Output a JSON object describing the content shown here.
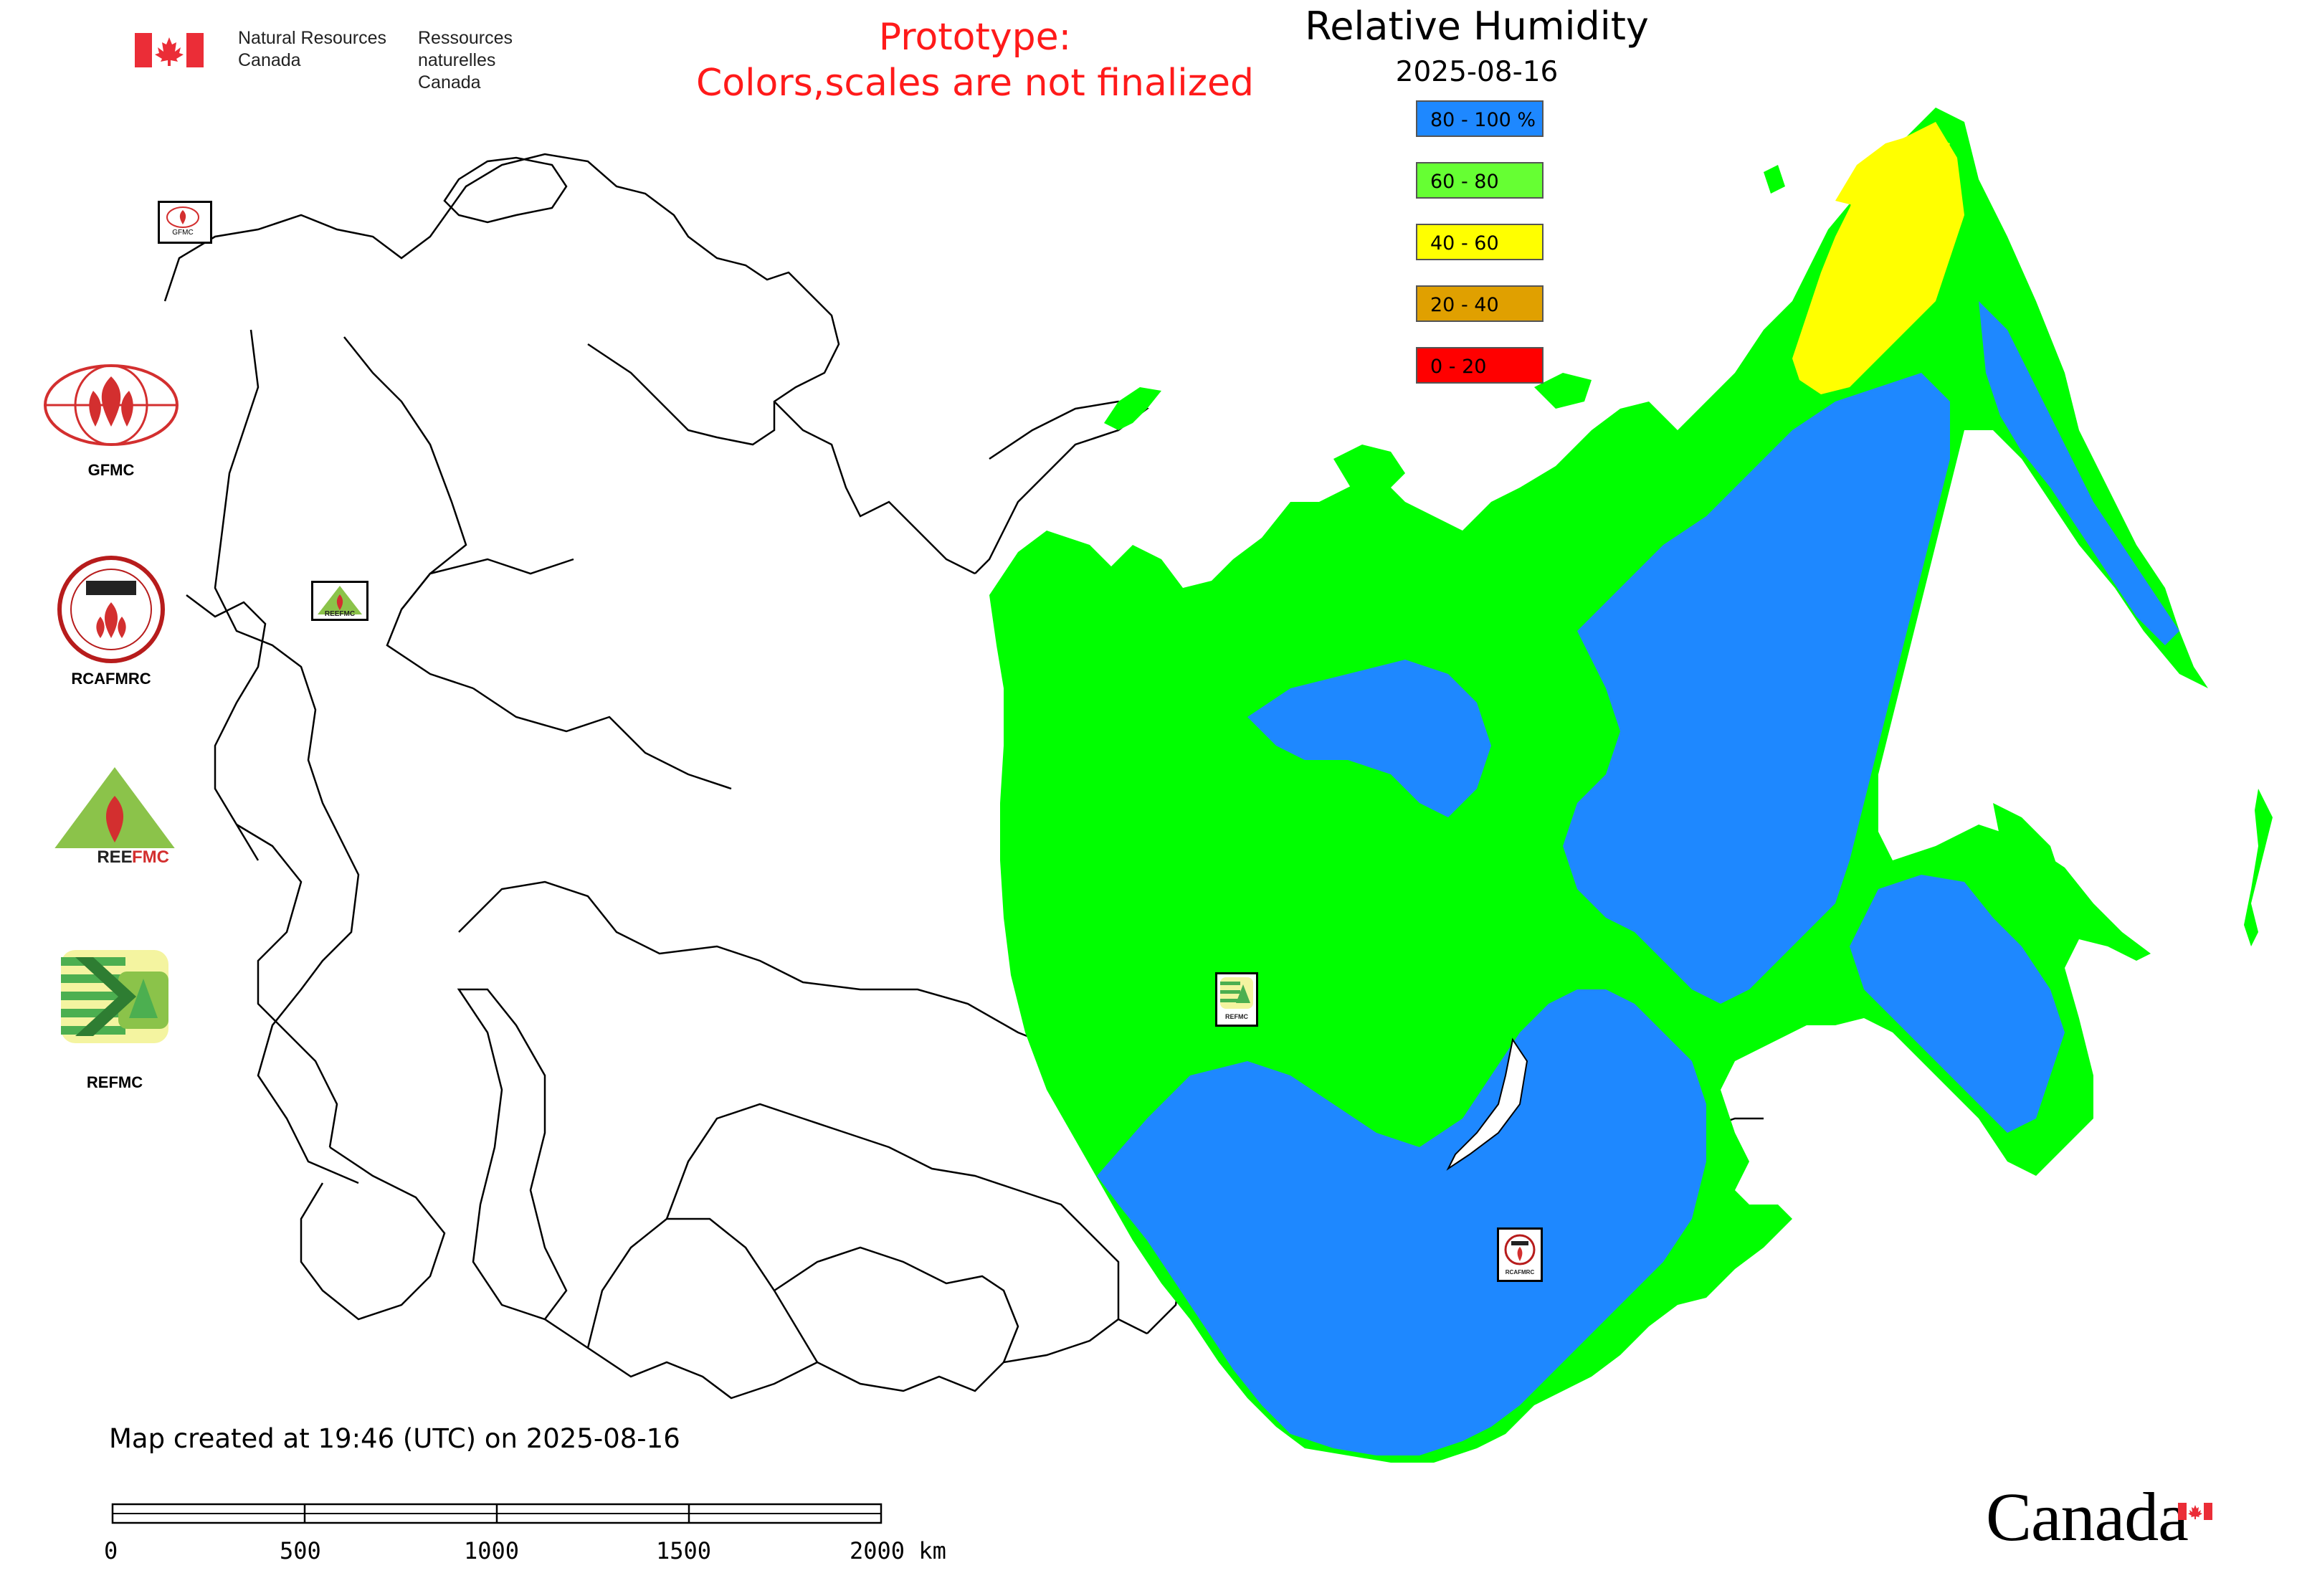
{
  "header": {
    "agency_en_line1": "Natural Resources",
    "agency_en_line2": "Canada",
    "agency_fr_line1": "Ressources naturelles",
    "agency_fr_line2": "Canada"
  },
  "prototype_notice": {
    "line1": "Prototype:",
    "line2": "Colors,scales are not finalized",
    "color": "#ff1a1a"
  },
  "map": {
    "title": "Relative Humidity",
    "date": "2025-08-16",
    "created_note": "Map created at 19:46 (UTC) on 2025-08-16"
  },
  "legend": {
    "items": [
      {
        "label": "80 - 100 %",
        "color": "#1e88ff"
      },
      {
        "label": "60 - 80",
        "color": "#66ff33"
      },
      {
        "label": "40 - 60",
        "color": "#ffff00"
      },
      {
        "label": "20 - 40",
        "color": "#e0a000"
      },
      {
        "label": "0 - 20",
        "color": "#ff0000"
      }
    ]
  },
  "data_colors": {
    "high_humidity": "#1e88ff",
    "mid_humidity": "#00ff00",
    "low_humidity": "#ffff00"
  },
  "logos": {
    "gfmc": "GFMC",
    "rcafmrc": "RCAFMRC",
    "reefmc": "REEFMC",
    "refmc": "REFMC"
  },
  "map_markers": {
    "gfmc_small": "GFMC",
    "reefmc_small": "REEFMC",
    "refmc_small": "REFMC",
    "rcafmrc_small": "RCAFMRC"
  },
  "scale_bar": {
    "labels": [
      "0",
      "500",
      "1000",
      "1500",
      "2000 km"
    ]
  },
  "footer": {
    "wordmark": "Canada"
  }
}
